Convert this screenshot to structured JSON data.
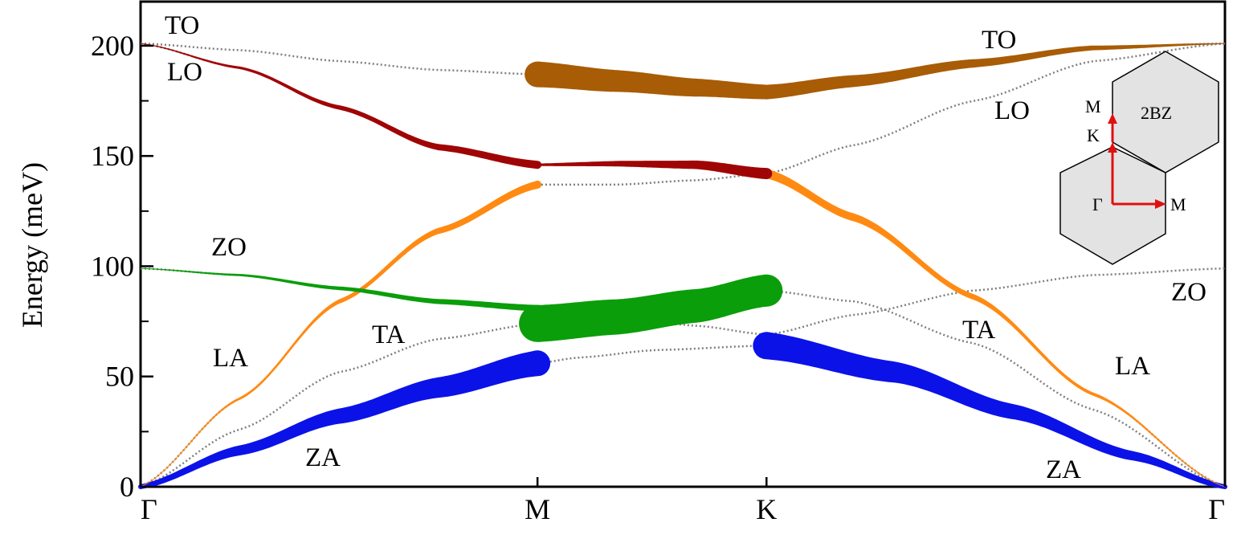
{
  "chart_data": {
    "type": "line",
    "ylabel": "Energy (meV)",
    "ylim": [
      0,
      220
    ],
    "y_ticks": [
      "0",
      "50",
      "100",
      "150",
      "200"
    ],
    "x_ticks": [
      "Γ",
      "M",
      "K",
      "Γ"
    ],
    "x_tick_positions": [
      0,
      1,
      1.577,
      2.732
    ],
    "grid": false,
    "colors": {
      "ZA": "#0b12e8",
      "LA_TA": "#ff8a12",
      "ZO": "#0a9e0a",
      "LO": "#a00505",
      "TO": "#a85c05",
      "unweighted": "#808080",
      "inset_arrow": "#e01010"
    },
    "series": [
      {
        "key": "ZA",
        "x": [
          0,
          0.25,
          0.5,
          0.75,
          1.0,
          1.1,
          1.3,
          1.577,
          1.9,
          2.2,
          2.5,
          2.732
        ],
        "y": [
          0,
          16.5,
          32,
          45,
          56,
          58.5,
          62,
          64,
          52,
          34,
          14,
          0
        ]
      },
      {
        "key": "TA",
        "x": [
          0,
          0.25,
          0.5,
          0.75,
          1.0,
          1.2,
          1.4,
          1.577,
          1.8,
          2.1,
          2.4,
          2.732
        ],
        "y": [
          0,
          26,
          52,
          67,
          74,
          77,
          82,
          89,
          84,
          65,
          35,
          0
        ]
      },
      {
        "key": "LA",
        "x": [
          0,
          0.25,
          0.5,
          0.75,
          1.0,
          1.2,
          1.4,
          1.577,
          1.8,
          2.1,
          2.4,
          2.732
        ],
        "y": [
          0,
          40,
          84,
          116,
          137,
          137,
          139,
          142,
          122,
          86,
          42,
          0
        ]
      },
      {
        "key": "ZO",
        "x": [
          0,
          0.25,
          0.5,
          0.75,
          1.0,
          1.2,
          1.4,
          1.577,
          1.8,
          2.1,
          2.4,
          2.732
        ],
        "y": [
          99,
          96,
          90,
          84,
          81,
          77,
          73,
          69,
          78,
          89,
          96,
          99
        ]
      },
      {
        "key": "LO",
        "x": [
          0,
          0.25,
          0.5,
          0.75,
          1.0,
          1.2,
          1.4,
          1.577,
          1.8,
          2.1,
          2.4,
          2.732
        ],
        "y": [
          201,
          190,
          172,
          154,
          146,
          146.5,
          146,
          142,
          155,
          175,
          193,
          201
        ]
      },
      {
        "key": "TO",
        "x": [
          0,
          0.25,
          0.5,
          0.75,
          1.0,
          1.2,
          1.4,
          1.577,
          1.8,
          2.1,
          2.4,
          2.732
        ],
        "y": [
          201,
          198,
          193,
          189,
          187,
          184,
          181,
          179,
          184,
          192,
          199,
          201
        ]
      }
    ],
    "weighted_segments": [
      {
        "band": "ZA",
        "color": "ZA",
        "x0": 0,
        "x1": 1.0,
        "w0": 6,
        "w1": 32
      },
      {
        "band": "ZA",
        "color": "ZA",
        "x0": 1.577,
        "x1": 2.732,
        "w0": 34,
        "w1": 6
      },
      {
        "band": "LA",
        "color": "LA_TA",
        "x0": 0,
        "x1": 1.0,
        "w0": 1,
        "w1": 10
      },
      {
        "band": "LA",
        "color": "LA_TA",
        "x0": 1.577,
        "x1": 2.732,
        "w0": 12,
        "w1": 1
      },
      {
        "band": "TA",
        "color": "ZO",
        "x0": 1.0,
        "x1": 1.577,
        "w0": 46,
        "w1": 40
      },
      {
        "band": "ZO",
        "color": "ZO",
        "x0": 0,
        "x1": 1.0,
        "w0": 1,
        "w1": 8
      },
      {
        "band": "LO",
        "color": "LO",
        "x0": 0,
        "x1": 1.0,
        "w0": 1,
        "w1": 10
      },
      {
        "band": "LO",
        "color": "LO",
        "x0": 1.0,
        "x1": 1.577,
        "w0": 3,
        "w1": 14
      },
      {
        "band": "TO",
        "color": "TO",
        "x0": 1.0,
        "x1": 1.577,
        "w0": 32,
        "w1": 18
      },
      {
        "band": "TO",
        "color": "TO",
        "x0": 1.577,
        "x1": 2.732,
        "w0": 18,
        "w1": 1
      }
    ],
    "annotations": [
      "TO",
      "LO",
      "ZO",
      "LA",
      "TA",
      "ZA",
      "TO",
      "LO",
      "ZO",
      "TA",
      "LA",
      "ZA"
    ]
  },
  "inset": {
    "labels": [
      "M",
      "K",
      "2BZ",
      "Γ",
      "M"
    ]
  }
}
